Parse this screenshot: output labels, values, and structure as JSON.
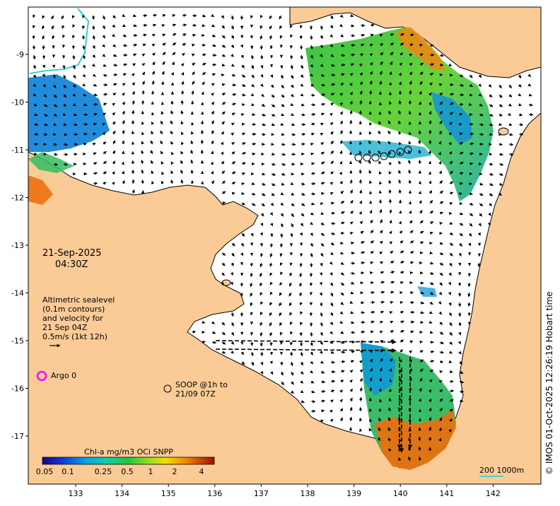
{
  "map": {
    "date": "21-Sep-2025",
    "time": "04:30Z",
    "altimetry_lines": [
      "Altimetric sealevel",
      "(0.1m contours)",
      "and velocity for",
      "21 Sep 04Z",
      "0.5m/s (1kt 12h)"
    ],
    "argo_label": "Argo 0",
    "soop_lines": [
      "SOOP @1h to",
      "21/09 07Z"
    ],
    "colorbar_title": "Chl-a mg/m3 OCi SNPP",
    "colorbar_ticks": [
      "0.05",
      "0.1",
      "0.25",
      "0.5",
      "1",
      "2",
      "4"
    ],
    "scale_label": "200  1000m",
    "credit": "© IMOS 01-Oct-2025 12:26:19 Hobart time",
    "lon_ticks": [
      "133",
      "134",
      "135",
      "136",
      "137",
      "138",
      "139",
      "140",
      "141",
      "142"
    ],
    "lat_ticks": [
      "-9",
      "-10",
      "-11",
      "-12",
      "-13",
      "-14",
      "-15",
      "-16",
      "-17"
    ],
    "colors": {
      "land": "#fbcb97",
      "sea": "#ffffff",
      "argo": "#ff00ff",
      "shelf_contour": "#22cccc"
    }
  }
}
